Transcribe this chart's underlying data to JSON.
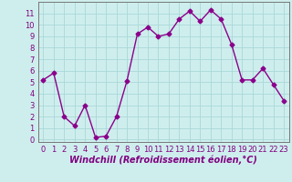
{
  "x": [
    0,
    1,
    2,
    3,
    4,
    5,
    6,
    7,
    8,
    9,
    10,
    11,
    12,
    13,
    14,
    15,
    16,
    17,
    18,
    19,
    20,
    21,
    22,
    23
  ],
  "y": [
    5.2,
    5.8,
    2.0,
    1.2,
    3.0,
    0.2,
    0.3,
    2.0,
    5.1,
    9.2,
    9.8,
    9.0,
    9.2,
    10.5,
    11.2,
    10.3,
    11.3,
    10.5,
    8.3,
    5.2,
    5.2,
    6.2,
    4.8,
    3.4
  ],
  "line_color": "#8B008B",
  "marker": "D",
  "markersize": 2.5,
  "linewidth": 1.0,
  "bg_color": "#ceeeed",
  "grid_color": "#aad8d8",
  "xlabel": "Windchill (Refroidissement éolien,°C)",
  "xlim": [
    -0.5,
    23.5
  ],
  "ylim": [
    -0.2,
    12
  ],
  "xticks": [
    0,
    1,
    2,
    3,
    4,
    5,
    6,
    7,
    8,
    9,
    10,
    11,
    12,
    13,
    14,
    15,
    16,
    17,
    18,
    19,
    20,
    21,
    22,
    23
  ],
  "yticks": [
    0,
    1,
    2,
    3,
    4,
    5,
    6,
    7,
    8,
    9,
    10,
    11
  ],
  "xlabel_fontsize": 7,
  "tick_fontsize": 6,
  "ylabel_color": "#800080",
  "xlabel_color": "#800080"
}
